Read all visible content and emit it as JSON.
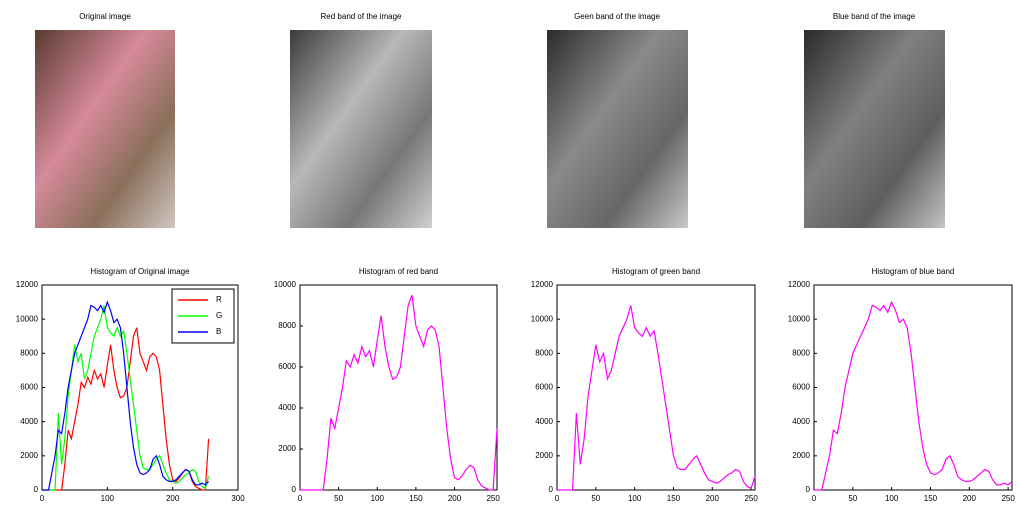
{
  "images": [
    {
      "title": "Original image"
    },
    {
      "title": "Red band of the image"
    },
    {
      "title": "Geen band of the image"
    },
    {
      "title": "Blue band of the image"
    }
  ],
  "chart_data": [
    {
      "type": "line",
      "title": "Histogram of Original image",
      "legend": "upper right",
      "xlim": [
        0,
        300
      ],
      "xticks": [
        0,
        100,
        200,
        300
      ],
      "ylim": [
        0,
        12000
      ],
      "yticks": [
        0,
        2000,
        4000,
        6000,
        8000,
        10000,
        12000
      ],
      "x": [
        0,
        5,
        10,
        15,
        20,
        25,
        30,
        35,
        40,
        45,
        50,
        55,
        60,
        65,
        70,
        75,
        80,
        85,
        90,
        95,
        100,
        105,
        110,
        115,
        120,
        125,
        130,
        135,
        140,
        145,
        150,
        155,
        160,
        165,
        170,
        175,
        180,
        185,
        190,
        195,
        200,
        205,
        210,
        215,
        220,
        225,
        230,
        235,
        240,
        245,
        250,
        255
      ],
      "series": [
        {
          "name": "R",
          "color": "#ff0000",
          "values": [
            0,
            0,
            0,
            0,
            0,
            0,
            0,
            1500,
            3500,
            3000,
            4000,
            5000,
            6300,
            6000,
            6600,
            6200,
            7000,
            6500,
            6800,
            6000,
            7300,
            8500,
            7000,
            6000,
            5400,
            5500,
            6000,
            7500,
            9000,
            9500,
            8000,
            7500,
            7000,
            7800,
            8000,
            7800,
            7000,
            5000,
            3000,
            1500,
            600,
            500,
            700,
            1000,
            1200,
            1100,
            500,
            200,
            100,
            0,
            0,
            3000
          ]
        },
        {
          "name": "G",
          "color": "#00ff00",
          "values": [
            0,
            0,
            0,
            0,
            0,
            4500,
            1500,
            3000,
            5500,
            7000,
            8500,
            7500,
            8000,
            6500,
            7000,
            8000,
            9000,
            9500,
            10000,
            10800,
            9500,
            9200,
            9000,
            9500,
            9000,
            9300,
            8000,
            6500,
            5000,
            3500,
            2000,
            1300,
            1200,
            1200,
            1500,
            1800,
            2000,
            1500,
            1000,
            600,
            500,
            400,
            500,
            700,
            900,
            1000,
            1200,
            1100,
            500,
            200,
            100,
            800
          ]
        },
        {
          "name": "B",
          "color": "#0000ff",
          "values": [
            0,
            0,
            0,
            1000,
            2000,
            3500,
            3300,
            4500,
            6000,
            7000,
            8000,
            8500,
            9000,
            9500,
            10000,
            10800,
            10700,
            10500,
            10800,
            10400,
            11000,
            10500,
            9800,
            10000,
            9500,
            8000,
            6000,
            4000,
            2500,
            1500,
            1000,
            900,
            1000,
            1200,
            1800,
            2000,
            1500,
            800,
            600,
            500,
            500,
            600,
            800,
            1000,
            1200,
            1100,
            600,
            300,
            300,
            400,
            300,
            500
          ]
        }
      ]
    },
    {
      "type": "line",
      "title": "Histogram of red band",
      "xlim": [
        0,
        255
      ],
      "xticks": [
        0,
        50,
        100,
        150,
        200,
        250
      ],
      "ylim": [
        0,
        10000
      ],
      "yticks": [
        0,
        2000,
        4000,
        6000,
        8000,
        10000
      ],
      "x": [
        0,
        5,
        10,
        15,
        20,
        25,
        30,
        35,
        40,
        45,
        50,
        55,
        60,
        65,
        70,
        75,
        80,
        85,
        90,
        95,
        100,
        105,
        110,
        115,
        120,
        125,
        130,
        135,
        140,
        145,
        150,
        155,
        160,
        165,
        170,
        175,
        180,
        185,
        190,
        195,
        200,
        205,
        210,
        215,
        220,
        225,
        230,
        235,
        240,
        245,
        250,
        255
      ],
      "series": [
        {
          "color": "#ff00ff",
          "values": [
            0,
            0,
            0,
            0,
            0,
            0,
            0,
            1500,
            3500,
            3000,
            4000,
            5000,
            6300,
            6000,
            6600,
            6200,
            7000,
            6500,
            6800,
            6000,
            7300,
            8500,
            7000,
            6000,
            5400,
            5500,
            6000,
            7500,
            9000,
            9500,
            8000,
            7500,
            7000,
            7800,
            8000,
            7800,
            7000,
            5000,
            3000,
            1500,
            600,
            500,
            700,
            1000,
            1200,
            1100,
            500,
            200,
            100,
            0,
            0,
            3000
          ]
        }
      ]
    },
    {
      "type": "line",
      "title": "Histogram of green band",
      "xlim": [
        0,
        255
      ],
      "xticks": [
        0,
        50,
        100,
        150,
        200,
        250
      ],
      "ylim": [
        0,
        12000
      ],
      "yticks": [
        0,
        2000,
        4000,
        6000,
        8000,
        10000,
        12000
      ],
      "x": [
        0,
        5,
        10,
        15,
        20,
        25,
        30,
        35,
        40,
        45,
        50,
        55,
        60,
        65,
        70,
        75,
        80,
        85,
        90,
        95,
        100,
        105,
        110,
        115,
        120,
        125,
        130,
        135,
        140,
        145,
        150,
        155,
        160,
        165,
        170,
        175,
        180,
        185,
        190,
        195,
        200,
        205,
        210,
        215,
        220,
        225,
        230,
        235,
        240,
        245,
        250,
        255
      ],
      "series": [
        {
          "color": "#ff00ff",
          "values": [
            0,
            0,
            0,
            0,
            0,
            4500,
            1500,
            3000,
            5500,
            7000,
            8500,
            7500,
            8000,
            6500,
            7000,
            8000,
            9000,
            9500,
            10000,
            10800,
            9500,
            9200,
            9000,
            9500,
            9000,
            9300,
            8000,
            6500,
            5000,
            3500,
            2000,
            1300,
            1200,
            1200,
            1500,
            1800,
            2000,
            1500,
            1000,
            600,
            500,
            400,
            500,
            700,
            900,
            1000,
            1200,
            1100,
            500,
            200,
            100,
            800
          ]
        }
      ]
    },
    {
      "type": "line",
      "title": "Histogram of blue band",
      "xlim": [
        0,
        255
      ],
      "xticks": [
        0,
        50,
        100,
        150,
        200,
        250
      ],
      "ylim": [
        0,
        12000
      ],
      "yticks": [
        0,
        2000,
        4000,
        6000,
        8000,
        10000,
        12000
      ],
      "x": [
        0,
        5,
        10,
        15,
        20,
        25,
        30,
        35,
        40,
        45,
        50,
        55,
        60,
        65,
        70,
        75,
        80,
        85,
        90,
        95,
        100,
        105,
        110,
        115,
        120,
        125,
        130,
        135,
        140,
        145,
        150,
        155,
        160,
        165,
        170,
        175,
        180,
        185,
        190,
        195,
        200,
        205,
        210,
        215,
        220,
        225,
        230,
        235,
        240,
        245,
        250,
        255
      ],
      "series": [
        {
          "color": "#ff00ff",
          "values": [
            0,
            0,
            0,
            1000,
            2000,
            3500,
            3300,
            4500,
            6000,
            7000,
            8000,
            8500,
            9000,
            9500,
            10000,
            10800,
            10700,
            10500,
            10800,
            10400,
            11000,
            10500,
            9800,
            10000,
            9500,
            8000,
            6000,
            4000,
            2500,
            1500,
            1000,
            900,
            1000,
            1200,
            1800,
            2000,
            1500,
            800,
            600,
            500,
            500,
            600,
            800,
            1000,
            1200,
            1100,
            600,
            300,
            300,
            400,
            300,
            500
          ]
        }
      ]
    }
  ]
}
